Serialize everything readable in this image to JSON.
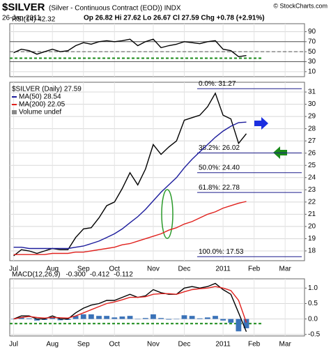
{
  "header": {
    "symbol": "$SILVER",
    "description": "(Silver - Continuous Contract (EOD)) INDX",
    "credit": "© StockCharts.com",
    "date": "26-Jan-2011",
    "quote": "Op 26.82 Hi 27.62 Lo 26.67 Cl 27.59 Chg +0.78 (+2.91%)"
  },
  "chart_data": [
    {
      "type": "line",
      "title": "RSI(14) 42.32",
      "legend_direction": "horizontal",
      "show_x_labels": false,
      "categories": [
        "Jul",
        null,
        null,
        null,
        null,
        "Aug",
        null,
        null,
        null,
        "Sep",
        null,
        null,
        null,
        "Oct",
        null,
        null,
        null,
        null,
        "Nov",
        null,
        null,
        null,
        "Dec",
        null,
        null,
        null,
        null,
        "2011",
        null,
        null,
        null,
        "Feb",
        null,
        null,
        null,
        "Mar",
        null,
        null
      ],
      "ylim": [
        0,
        106
      ],
      "yticks": [
        10,
        30,
        50,
        70,
        90
      ],
      "grid": true,
      "hlines": [
        70,
        50,
        30
      ],
      "signal_line": {
        "value": 37,
        "color": "#1a8a1a"
      },
      "series": [
        {
          "color": "#000000",
          "values": [
            48,
            55,
            52,
            45,
            50,
            55,
            50,
            52,
            62,
            68,
            65,
            70,
            72,
            70,
            72,
            75,
            62,
            70,
            75,
            58,
            62,
            65,
            70,
            68,
            66,
            70,
            72,
            55,
            52,
            40,
            42.32,
            null,
            null,
            null,
            null,
            null,
            null,
            null
          ]
        }
      ]
    },
    {
      "type": "line",
      "title": "$SILVER (Daily) 27.59",
      "legend_direction": "vertical",
      "show_x_labels": true,
      "categories": [
        "Jul",
        null,
        null,
        null,
        null,
        "Aug",
        null,
        null,
        null,
        "Sep",
        null,
        null,
        null,
        "Oct",
        null,
        null,
        null,
        null,
        "Nov",
        null,
        null,
        null,
        "Dec",
        null,
        null,
        null,
        null,
        "2011",
        null,
        null,
        null,
        "Feb",
        null,
        null,
        null,
        "Mar",
        null,
        null
      ],
      "ylim": [
        17.2,
        31.8
      ],
      "yticks": [
        18,
        19,
        20,
        21,
        22,
        23,
        24,
        25,
        26,
        27,
        28,
        29,
        30,
        31
      ],
      "grid": true,
      "fib_levels": [
        {
          "value": 31.27,
          "label": "0.0%: 31.27"
        },
        {
          "value": 26.02,
          "label": "38.2%: 26.02"
        },
        {
          "value": 24.4,
          "label": "50.0%: 24.40"
        },
        {
          "value": 22.78,
          "label": "61.8%: 22.78"
        },
        {
          "value": 17.53,
          "label": "100.0%: 17.53"
        }
      ],
      "fib_color": "#1c1c8c",
      "extra_legend": [
        "Volume undef"
      ],
      "series": [
        {
          "color": "#000000",
          "values": [
            17.6,
            18.1,
            18.0,
            17.8,
            18.0,
            18.2,
            18.1,
            18.1,
            19.1,
            19.8,
            19.9,
            20.7,
            21.7,
            22.0,
            23.1,
            24.4,
            23.4,
            24.7,
            26.7,
            25.9,
            26.5,
            27.0,
            28.7,
            28.9,
            29.1,
            29.8,
            30.9,
            29.1,
            28.8,
            26.8,
            27.59,
            null,
            null,
            null,
            null,
            null,
            null,
            null
          ]
        },
        {
          "name": "MA(50) 28.54",
          "color": "#1c1c9c",
          "values": [
            18.3,
            18.3,
            18.2,
            18.2,
            18.2,
            18.2,
            18.2,
            18.2,
            18.3,
            18.4,
            18.6,
            18.8,
            19.1,
            19.4,
            19.8,
            20.3,
            20.8,
            21.4,
            22.1,
            22.8,
            23.4,
            24.0,
            24.8,
            25.5,
            26.1,
            26.7,
            27.3,
            27.8,
            28.2,
            28.5,
            28.54,
            null,
            null,
            null,
            null,
            null,
            null,
            null
          ]
        },
        {
          "name": "MA(200) 22.05",
          "color": "#e0201c",
          "values": [
            17.7,
            17.7,
            17.7,
            17.7,
            17.7,
            17.8,
            17.8,
            17.8,
            17.9,
            17.9,
            18.0,
            18.1,
            18.2,
            18.3,
            18.5,
            18.6,
            18.8,
            19.0,
            19.2,
            19.4,
            19.7,
            19.9,
            20.2,
            20.4,
            20.7,
            21.0,
            21.2,
            21.5,
            21.7,
            21.9,
            22.05,
            null,
            null,
            null,
            null,
            null,
            null,
            null
          ]
        }
      ]
    },
    {
      "type": "line",
      "title": "MACD(12,26,9)",
      "legend_direction": "horizontal",
      "show_x_labels": true,
      "categories": [
        "Jul",
        null,
        null,
        null,
        null,
        "Aug",
        null,
        null,
        null,
        "Sep",
        null,
        null,
        null,
        "Oct",
        null,
        null,
        null,
        null,
        "Nov",
        null,
        null,
        null,
        "Dec",
        null,
        null,
        null,
        null,
        "2011",
        null,
        null,
        null,
        "Feb",
        null,
        null,
        null,
        "Mar",
        null,
        null
      ],
      "ylim": [
        -0.55,
        1.3
      ],
      "yticks": [
        {
          "value": 1,
          "label": "1.0"
        },
        0.5,
        {
          "value": 0,
          "label": "0.0"
        },
        -0.5
      ],
      "grid": true,
      "signal_line": {
        "value": -0.15,
        "color": "#1a8a1a"
      },
      "series": [
        {
          "name": "-0.300",
          "color": "#3a72b8",
          "style": "bar",
          "values": [
            0,
            0.05,
            0.02,
            -0.05,
            -0.03,
            0.05,
            -0.04,
            -0.03,
            0.1,
            0.15,
            0.15,
            0.1,
            0.1,
            0.05,
            0.08,
            0.1,
            0,
            0.03,
            0.15,
            0.03,
            -0.02,
            0,
            0.12,
            0.1,
            0.02,
            0.05,
            0.1,
            -0.05,
            -0.12,
            -0.4,
            -0.3,
            null,
            null,
            null,
            null,
            null,
            null,
            null
          ]
        },
        {
          "name": "-0.412",
          "color": "#000000",
          "values": [
            0.0,
            0.1,
            0.1,
            0.0,
            0.0,
            0.1,
            0.0,
            0.0,
            0.2,
            0.35,
            0.45,
            0.5,
            0.6,
            0.6,
            0.7,
            0.8,
            0.7,
            0.75,
            0.95,
            0.85,
            0.8,
            0.8,
            1.0,
            1.05,
            1.0,
            1.05,
            1.15,
            0.95,
            0.8,
            0.2,
            -0.412,
            null,
            null,
            null,
            null,
            null,
            null,
            null
          ]
        },
        {
          "name": "-0.112",
          "color": "#e0201c",
          "values": [
            0.0,
            0.05,
            0.08,
            0.05,
            0.03,
            0.05,
            0.04,
            0.03,
            0.1,
            0.2,
            0.3,
            0.4,
            0.5,
            0.55,
            0.62,
            0.7,
            0.7,
            0.72,
            0.8,
            0.82,
            0.82,
            0.8,
            0.88,
            0.95,
            0.98,
            1.0,
            1.05,
            1.0,
            0.92,
            0.6,
            -0.112,
            null,
            null,
            null,
            null,
            null,
            null,
            null
          ]
        }
      ]
    }
  ]
}
